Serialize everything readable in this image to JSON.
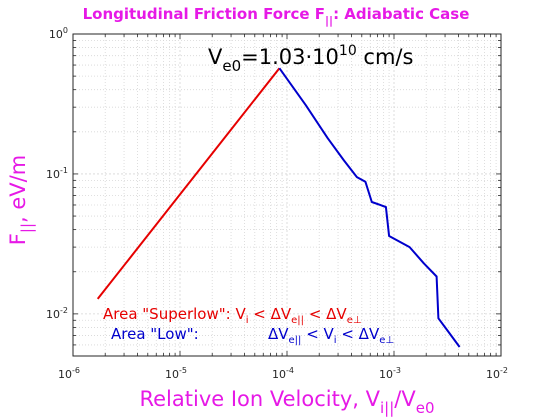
{
  "chart_data": {
    "type": "line",
    "title": {
      "main": "Longitudinal Friction Force F",
      "sub": "||",
      "tail": ": Adiabatic Case"
    },
    "xlabel": {
      "main": "Relative Ion Velocity, V",
      "sub": "i||",
      "tail": "/V",
      "sub2": "e0"
    },
    "ylabel": {
      "main": "F",
      "sub": "||",
      "tail": ", eV/m"
    },
    "xscale": "log",
    "yscale": "log",
    "xlim": [
      1e-06,
      0.01
    ],
    "ylim": [
      0.005,
      1
    ],
    "grid": true,
    "x_ticks": [
      {
        "value": 1e-06,
        "base": "10",
        "exp": "-6"
      },
      {
        "value": 1e-05,
        "base": "10",
        "exp": "-5"
      },
      {
        "value": 0.0001,
        "base": "10",
        "exp": "-4"
      },
      {
        "value": 0.001,
        "base": "10",
        "exp": "-3"
      },
      {
        "value": 0.01,
        "base": "10",
        "exp": "-2"
      }
    ],
    "y_ticks": [
      {
        "value": 0.01,
        "base": "10",
        "exp": "-2"
      },
      {
        "value": 0.1,
        "base": "10",
        "exp": "-1"
      },
      {
        "value": 1,
        "base": "10",
        "exp": "0"
      }
    ],
    "series": [
      {
        "color": "#e60000",
        "x": [
          1.7e-06,
          8.5e-05
        ],
        "y": [
          0.0128,
          0.57
        ]
      },
      {
        "color": "#0000cc",
        "x": [
          8.5e-05,
          0.00015,
          0.00024,
          0.00034,
          0.00045,
          0.00054,
          0.00062,
          0.00084,
          0.0009,
          0.0014,
          0.0019,
          0.0025,
          0.0026,
          0.0032,
          0.0041
        ],
        "y": [
          0.57,
          0.31,
          0.18,
          0.125,
          0.095,
          0.088,
          0.063,
          0.058,
          0.036,
          0.03,
          0.023,
          0.0185,
          0.0093,
          0.0075,
          0.0058
        ]
      }
    ],
    "annotations": {
      "velocity": {
        "pre": "V",
        "sub": "e0",
        "eq": "=1.03·10",
        "exp": "10",
        "unit": " cm/s"
      },
      "superlow": {
        "a": "Area \"Superlow\": V",
        "s1": "i",
        "b": " < ΔV",
        "s2": "e||",
        "c": " < ΔV",
        "s3": "e⊥"
      },
      "low": {
        "a": "Area \"Low\":",
        "b": "ΔV",
        "s1": "e||",
        "c": " < V",
        "s2": "i",
        "d": " < ΔV",
        "s3": "e⊥"
      }
    }
  }
}
